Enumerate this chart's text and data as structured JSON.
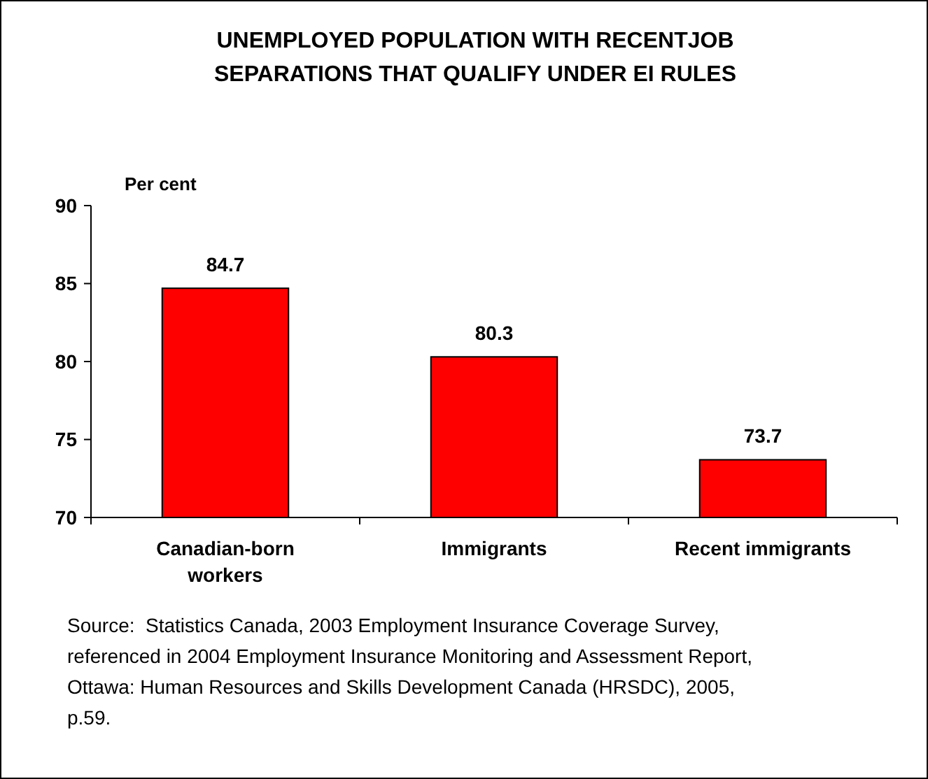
{
  "chart_data": {
    "type": "bar",
    "title": "UNEMPLOYED POPULATION WITH RECENTJOB SEPARATIONS THAT QUALIFY UNDER EI RULES",
    "ylabel": "Per cent",
    "categories": [
      "Canadian-born workers",
      "Immigrants",
      "Recent immigrants"
    ],
    "values": [
      84.7,
      80.3,
      73.7
    ],
    "color": "#ff0000",
    "data_labels": true,
    "ylim": [
      70,
      90
    ],
    "yticks": [
      70,
      75,
      80,
      85,
      90
    ],
    "grid": false,
    "annotations": [
      "Source:  Statistics Canada, 2003 Employment Insurance Coverage Survey, referenced in 2004 Employment Insurance Monitoring and Assessment Report, Ottawa: Human Resources and Skills Development Canada (HRSDC), 2005, p.59."
    ]
  }
}
